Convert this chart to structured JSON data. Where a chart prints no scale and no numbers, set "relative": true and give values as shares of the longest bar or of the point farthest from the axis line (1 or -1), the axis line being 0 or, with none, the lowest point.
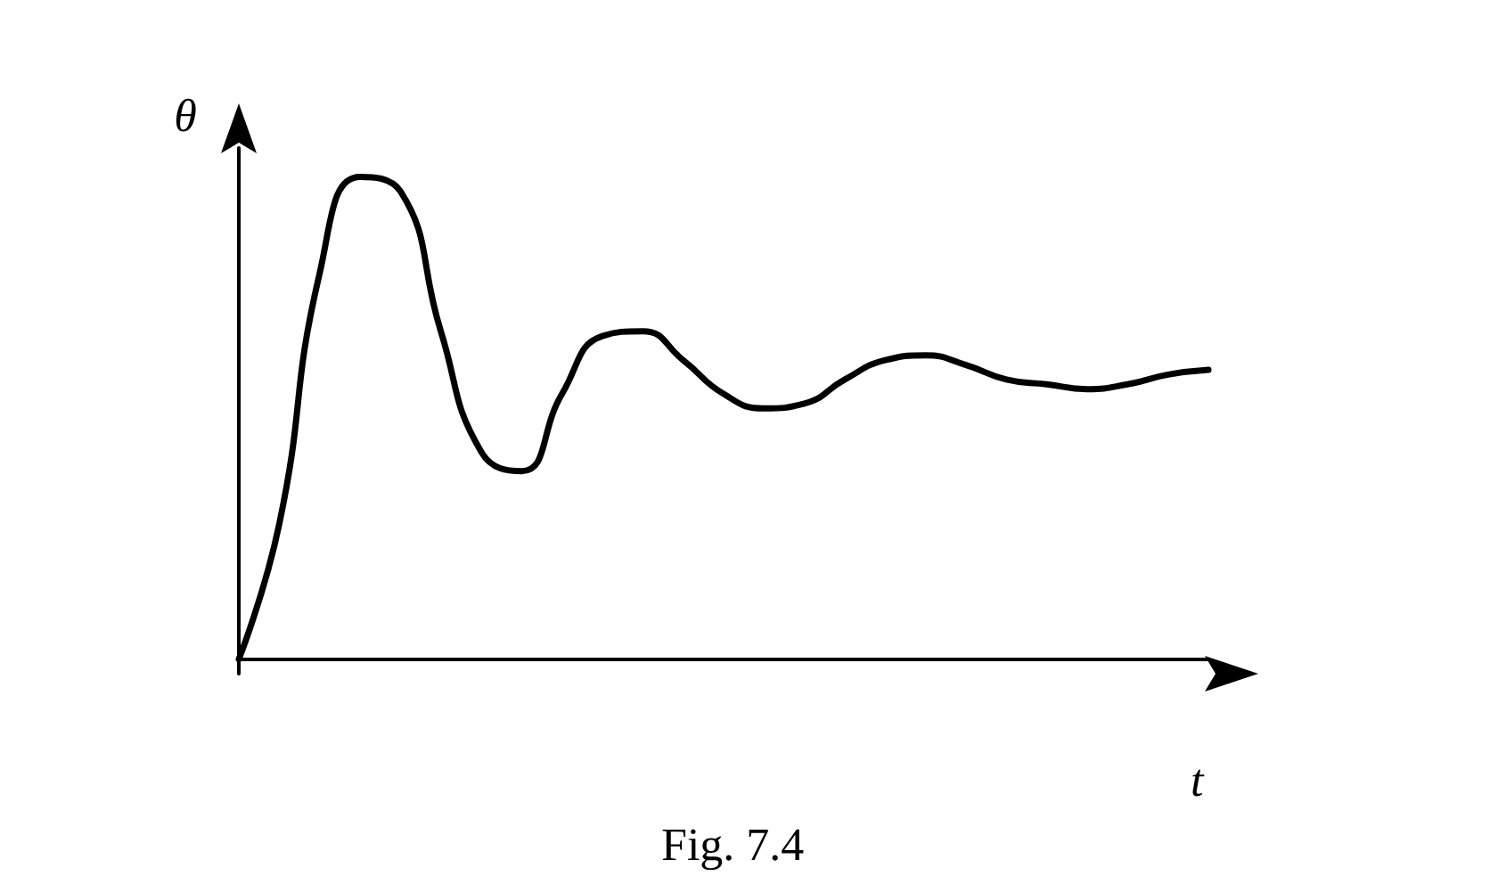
{
  "chart_data": {
    "type": "line",
    "relative": true,
    "xlabel": "t",
    "ylabel": "θ",
    "annotations": [
      "Fig. 7.4"
    ],
    "categories": [
      null,
      null,
      null,
      null,
      null,
      null,
      null,
      null,
      null,
      null,
      null,
      null,
      null,
      null,
      null,
      null,
      null,
      null,
      null,
      null,
      null,
      null,
      null,
      null,
      null
    ],
    "series": [
      {
        "color": "#000000",
        "values": [
          0,
          0.28,
          0.8,
          1,
          0.97,
          0.68,
          0.43,
          0.39,
          0.55,
          0.67,
          0.68,
          0.62,
          0.55,
          0.52,
          0.53,
          0.58,
          0.62,
          0.63,
          0.61,
          0.58,
          0.57,
          0.56,
          0.57,
          0.59,
          0.6
        ]
      }
    ]
  }
}
